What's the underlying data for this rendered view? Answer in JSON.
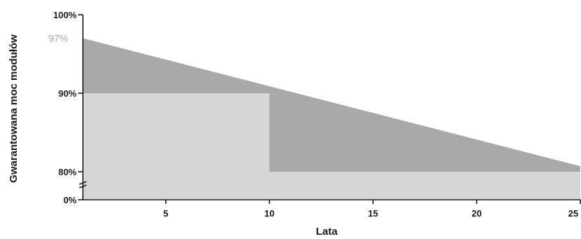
{
  "chart_data": {
    "type": "area",
    "title": "",
    "xlabel": "Lata",
    "ylabel": "Gwarantowana moc modułów",
    "x_ticks": [
      "5",
      "10",
      "15",
      "20",
      "25"
    ],
    "x_tick_values": [
      5,
      10,
      15,
      20,
      25
    ],
    "xlim": [
      1,
      25
    ],
    "y_ticks": [
      {
        "label": "100%",
        "value": 100
      },
      {
        "label": "97%",
        "value": 97,
        "style": "light"
      },
      {
        "label": "90%",
        "value": 90
      },
      {
        "label": "80%",
        "value": 80
      },
      {
        "label": "0%",
        "value": 0
      }
    ],
    "y_axis_break": true,
    "linear_guarantee": {
      "x": [
        1,
        25
      ],
      "y": [
        97,
        80.7
      ]
    },
    "step_guarantee": {
      "steps": [
        {
          "x_from": 1,
          "x_to": 10,
          "y": 90
        },
        {
          "x_from": 10,
          "x_to": 25,
          "y": 80
        }
      ]
    },
    "colors": {
      "linear_area": "#a9a9a9",
      "step_area": "#d7d7d7",
      "axis": "#1a1a1a",
      "light_label": "#a9a9a9"
    },
    "grid": false,
    "legend": "none"
  }
}
